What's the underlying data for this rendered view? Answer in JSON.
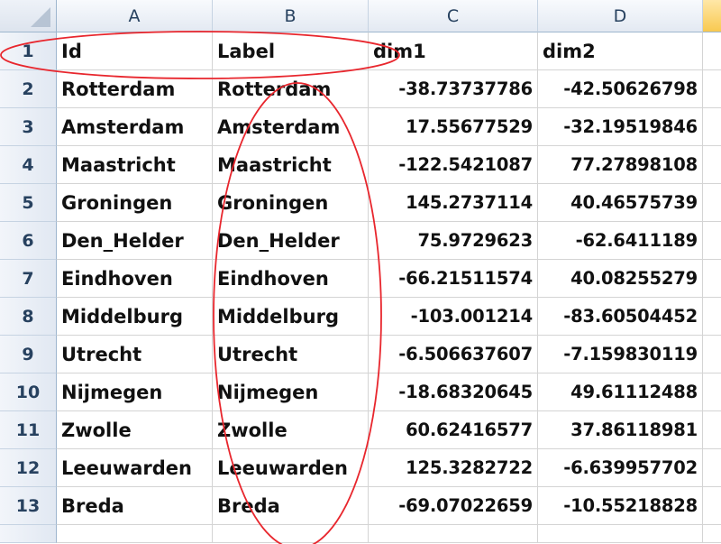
{
  "sheet": {
    "columns": [
      "A",
      "B",
      "C",
      "D"
    ],
    "row_numbers": [
      "1",
      "2",
      "3",
      "4",
      "5",
      "6",
      "7",
      "8",
      "9",
      "10",
      "11",
      "12",
      "13"
    ],
    "rows": [
      [
        "Id",
        "Label",
        "dim1",
        "dim2"
      ],
      [
        "Rotterdam",
        "Rotterdam",
        "-38.73737786",
        "-42.50626798"
      ],
      [
        "Amsterdam",
        "Amsterdam",
        "17.55677529",
        "-32.19519846"
      ],
      [
        "Maastricht",
        "Maastricht",
        "-122.5421087",
        "77.27898108"
      ],
      [
        "Groningen",
        "Groningen",
        "145.2737114",
        "40.46575739"
      ],
      [
        "Den_Helder",
        "Den_Helder",
        "75.9729623",
        "-62.6411189"
      ],
      [
        "Eindhoven",
        "Eindhoven",
        "-66.21511574",
        "40.08255279"
      ],
      [
        "Middelburg",
        "Middelburg",
        "-103.001214",
        "-83.60504452"
      ],
      [
        "Utrecht",
        "Utrecht",
        "-6.506637607",
        "-7.159830119"
      ],
      [
        "Nijmegen",
        "Nijmegen",
        "-18.68320645",
        "49.61112488"
      ],
      [
        "Zwolle",
        "Zwolle",
        "60.62416577",
        "37.86118981"
      ],
      [
        "Leeuwarden",
        "Leeuwarden",
        "125.3282722",
        "-6.639957702"
      ],
      [
        "Breda",
        "Breda",
        "-69.07022659",
        "-10.55218828"
      ]
    ]
  },
  "colors": {
    "annotation": "#e8262d",
    "header_accent": "#f8c950",
    "header_text": "#27415f"
  }
}
